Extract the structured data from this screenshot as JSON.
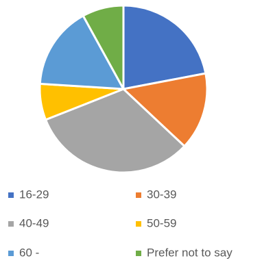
{
  "chart_data": {
    "type": "pie",
    "title": "",
    "categories": [
      "16-29",
      "30-39",
      "40-49",
      "50-59",
      "60 -",
      "Prefer not to say"
    ],
    "values": [
      22,
      15,
      32,
      7,
      16,
      8
    ],
    "colors": [
      "#4472C4",
      "#ED7D31",
      "#A5A5A5",
      "#FFC000",
      "#5B9BD5",
      "#70AD47"
    ],
    "legend_position": "bottom",
    "slice_border_color": "#FFFFFF"
  }
}
